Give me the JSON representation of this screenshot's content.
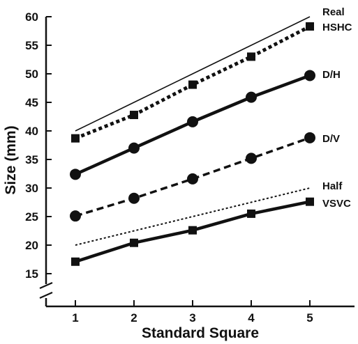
{
  "chart_data": {
    "type": "line",
    "xlabel": "Standard Square",
    "ylabel": "Size (mm)",
    "x": [
      1,
      2,
      3,
      4,
      5
    ],
    "xlim": [
      0.5,
      5.8
    ],
    "ylim": [
      12,
      60
    ],
    "y_axis_break": true,
    "grid": false,
    "legend": "inline labels at right end of each line",
    "x_ticks": [
      "1",
      "2",
      "3",
      "4",
      "5"
    ],
    "y_ticks": [
      "15",
      "20",
      "25",
      "30",
      "35",
      "40",
      "45",
      "50",
      "55",
      "60"
    ],
    "series": [
      {
        "name": "Real",
        "style": "solid-thin",
        "marker": "none",
        "values": [
          40,
          45,
          50,
          55,
          60
        ]
      },
      {
        "name": "HSHC",
        "style": "dotted-thick",
        "marker": "square",
        "values": [
          38.7,
          42.8,
          48.1,
          53,
          58.3
        ]
      },
      {
        "name": "D/H",
        "style": "solid-thick",
        "marker": "circle",
        "values": [
          32.4,
          37,
          41.6,
          45.9,
          49.7
        ]
      },
      {
        "name": "D/V",
        "style": "dashed-thick",
        "marker": "circle",
        "values": [
          25.1,
          28.2,
          31.6,
          35.2,
          38.8
        ]
      },
      {
        "name": "Half",
        "style": "dotted-thin",
        "marker": "none",
        "values": [
          20,
          22.5,
          25,
          27.5,
          30
        ]
      },
      {
        "name": "VSVC",
        "style": "solid-thick",
        "marker": "square",
        "values": [
          17.1,
          20.4,
          22.6,
          25.5,
          27.6
        ]
      }
    ]
  }
}
